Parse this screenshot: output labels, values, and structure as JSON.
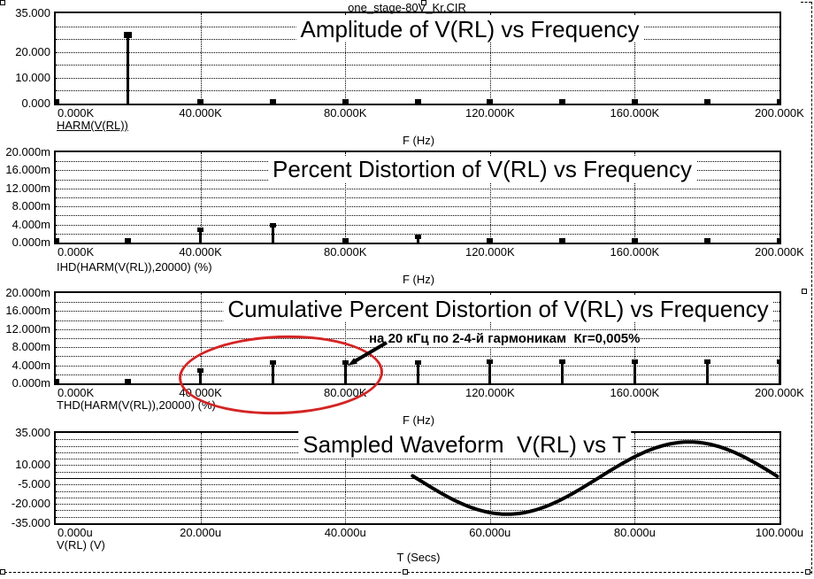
{
  "header": {
    "doc_title": "one_stage-80V_Kr.CIR"
  },
  "annotation": {
    "text": "на 20 кГц по 2-4-й гармоникам  Кг=0,005%",
    "ellipse_color": "#d42424",
    "arrow_color": "#000000"
  },
  "chart_data": [
    {
      "type": "stem",
      "title": "Amplitude of V(RL) vs Frequency",
      "curve_label": "HARM(V(RL))",
      "x_axis_title": "F (Hz)",
      "y_unit": "V",
      "ylim": [
        0,
        35
      ],
      "y_grid_step": 5,
      "y_ticks": [
        {
          "v": 35,
          "label": "35.000"
        },
        {
          "v": 20,
          "label": "20.000"
        },
        {
          "v": 10,
          "label": "10.000"
        },
        {
          "v": 0,
          "label": "0.000"
        }
      ],
      "xlim": [
        0,
        200
      ],
      "x_ticks": [
        {
          "v": 0,
          "label": "0.000K"
        },
        {
          "v": 40,
          "label": "40.000K"
        },
        {
          "v": 80,
          "label": "80.000K"
        },
        {
          "v": 120,
          "label": "120.000K"
        },
        {
          "v": 160,
          "label": "160.000K"
        },
        {
          "v": 200,
          "label": "200.000K"
        }
      ],
      "x_grid": [
        40,
        80,
        120,
        160
      ],
      "categories_khz": [
        0,
        20,
        40,
        60,
        80,
        100,
        120,
        140,
        160,
        180,
        200
      ],
      "values": [
        0.3,
        27.5,
        0.4,
        0.45,
        0.45,
        0.4,
        0.3,
        0.4,
        0.35,
        0.4,
        0.25
      ]
    },
    {
      "type": "stem",
      "title": "Percent Distortion of V(RL) vs Frequency",
      "curve_label": "IHD(HARM(V(RL)),20000) (%)",
      "x_axis_title": "F (Hz)",
      "y_unit": "m%",
      "ylim": [
        0,
        20
      ],
      "y_grid_step": 2,
      "y_ticks": [
        {
          "v": 20,
          "label": "20.000m"
        },
        {
          "v": 16,
          "label": "16.000m"
        },
        {
          "v": 12,
          "label": "12.000m"
        },
        {
          "v": 8,
          "label": "8.000m"
        },
        {
          "v": 4,
          "label": "4.000m"
        },
        {
          "v": 0,
          "label": "0.000m"
        }
      ],
      "xlim": [
        0,
        200
      ],
      "x_ticks": [
        {
          "v": 0,
          "label": "0.000K"
        },
        {
          "v": 40,
          "label": "40.000K"
        },
        {
          "v": 80,
          "label": "80.000K"
        },
        {
          "v": 120,
          "label": "120.000K"
        },
        {
          "v": 160,
          "label": "160.000K"
        },
        {
          "v": 200,
          "label": "200.000K"
        }
      ],
      "x_grid": [
        40,
        80,
        120,
        160
      ],
      "categories_khz": [
        0,
        20,
        40,
        60,
        80,
        100,
        120,
        140,
        160,
        180,
        200
      ],
      "values": [
        0.15,
        0.45,
        3.2,
        4.2,
        0.6,
        1.5,
        0.3,
        0.8,
        0.5,
        0.65,
        0.1
      ]
    },
    {
      "type": "stem",
      "title": "Cumulative Percent Distortion of V(RL) vs Frequency",
      "curve_label": "THD(HARM(V(RL)),20000) (%)",
      "x_axis_title": "F (Hz)",
      "y_unit": "m%",
      "ylim": [
        0,
        20
      ],
      "y_grid_step": 2,
      "y_ticks": [
        {
          "v": 20,
          "label": "20.000m"
        },
        {
          "v": 16,
          "label": "16.000m"
        },
        {
          "v": 12,
          "label": "12.000m"
        },
        {
          "v": 8,
          "label": "8.000m"
        },
        {
          "v": 4,
          "label": "4.000m"
        },
        {
          "v": 0,
          "label": "0.000m"
        }
      ],
      "xlim": [
        0,
        200
      ],
      "x_ticks": [
        {
          "v": 0,
          "label": "0.000K"
        },
        {
          "v": 40,
          "label": "40.000K"
        },
        {
          "v": 80,
          "label": "80.000K"
        },
        {
          "v": 120,
          "label": "120.000K"
        },
        {
          "v": 160,
          "label": "160.000K"
        },
        {
          "v": 200,
          "label": "200.000K"
        }
      ],
      "x_grid": [
        40,
        80,
        120,
        160
      ],
      "categories_khz": [
        0,
        20,
        40,
        60,
        80,
        100,
        120,
        140,
        160,
        180,
        200
      ],
      "values": [
        0.1,
        0.45,
        3.2,
        4.9,
        5.0,
        5.0,
        5.05,
        5.05,
        5.05,
        5.05,
        5.05
      ]
    },
    {
      "type": "line",
      "title": "Sampled Waveform  V(RL) vs T",
      "curve_label": "V(RL) (V)",
      "x_axis_title": "T (Secs)",
      "y_unit": "V",
      "ylim": [
        -35,
        35
      ],
      "y_grid_step": 5,
      "zero_line_solid": true,
      "y_ticks": [
        {
          "v": 35,
          "label": "35.000"
        },
        {
          "v": 10,
          "label": "10.000"
        },
        {
          "v": -5,
          "label": "-5.000"
        },
        {
          "v": -20,
          "label": "-20.000"
        },
        {
          "v": -35,
          "label": "-35.000"
        }
      ],
      "xlim": [
        0,
        100
      ],
      "x_ticks": [
        {
          "v": 0,
          "label": "0.000u"
        },
        {
          "v": 20,
          "label": "20.000u"
        },
        {
          "v": 40,
          "label": "40.000u"
        },
        {
          "v": 60,
          "label": "60.000u"
        },
        {
          "v": 80,
          "label": "80.000u"
        },
        {
          "v": 100,
          "label": "100.000u"
        }
      ],
      "x_grid": [
        20,
        40,
        60,
        80
      ],
      "waveform": {
        "amplitude_v": 28,
        "period_us": 50.3,
        "descending_zero_cross_us": 49.8,
        "visible_from_us": 49.3,
        "visible_to_us": 100
      }
    }
  ]
}
